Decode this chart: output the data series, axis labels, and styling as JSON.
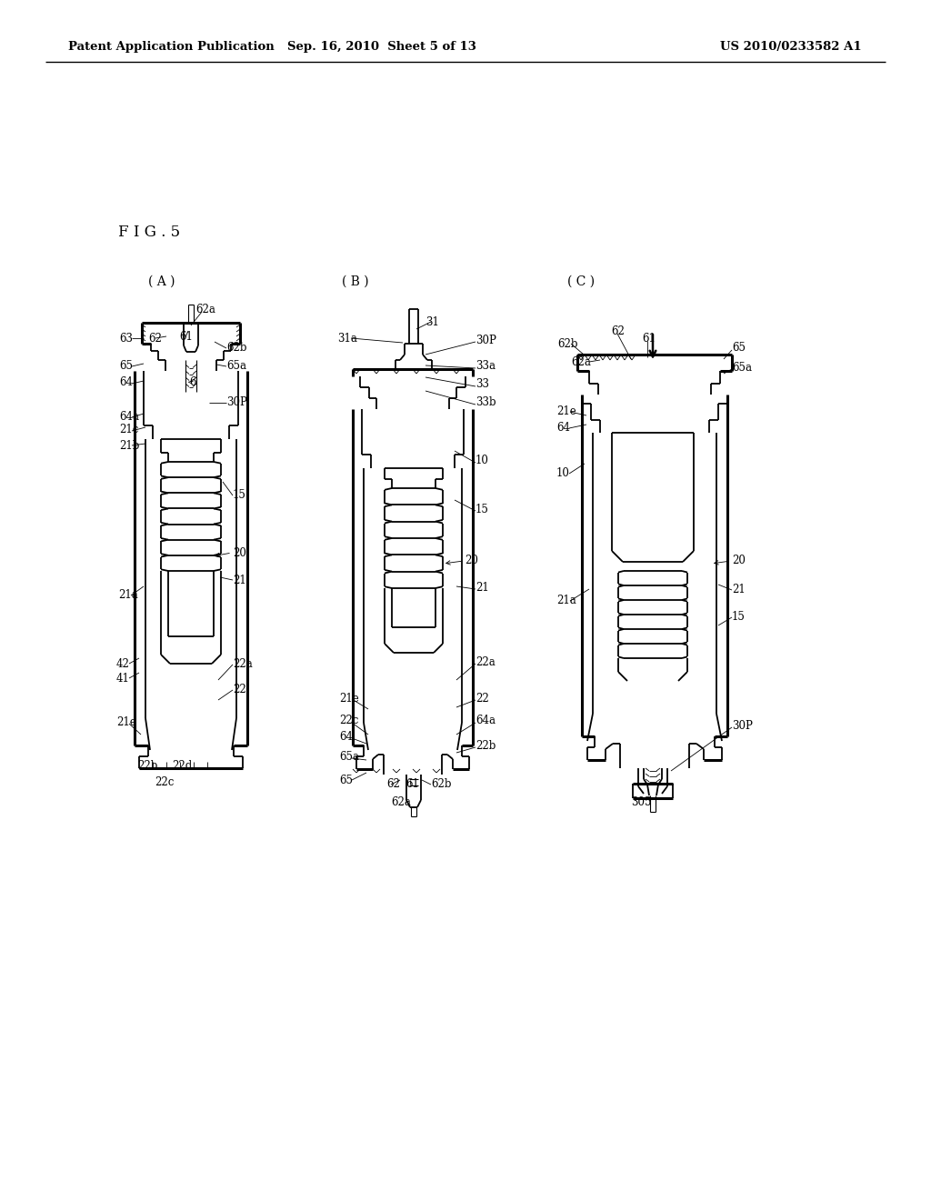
{
  "page_header_left": "Patent Application Publication",
  "page_header_center": "Sep. 16, 2010  Sheet 5 of 13",
  "page_header_right": "US 2010/0233582 A1",
  "fig_label": "F I G . 5",
  "background_color": "#ffffff",
  "line_color": "#000000",
  "panel_labels": [
    "( A )",
    "( B )",
    "( C )"
  ]
}
